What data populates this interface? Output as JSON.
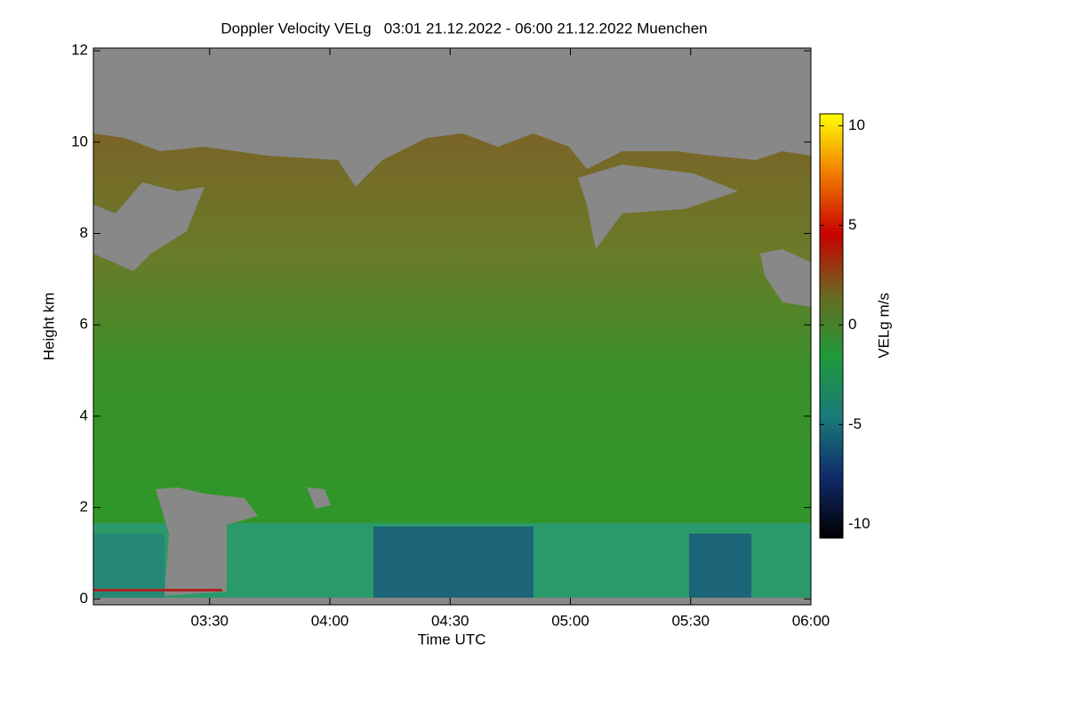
{
  "chart_data": {
    "type": "heatmap",
    "title": "Doppler Velocity VELg   03:01 21.12.2022 - 06:00 21.12.2022 Muenchen",
    "x_label": "Time UTC",
    "y_label": "Height km",
    "colorbar_label": "VELg m/s",
    "xlim": [
      181,
      360
    ],
    "xticks": [
      {
        "value": 210,
        "label": "03:30"
      },
      {
        "value": 240,
        "label": "04:00"
      },
      {
        "value": 270,
        "label": "04:30"
      },
      {
        "value": 300,
        "label": "05:00"
      },
      {
        "value": 330,
        "label": "05:30"
      },
      {
        "value": 360,
        "label": "06:00"
      }
    ],
    "ylim": [
      -0.13,
      12.06
    ],
    "yticks": [
      0,
      2,
      4,
      6,
      8,
      10,
      12
    ],
    "clim": [
      -10.7,
      10.6
    ],
    "cticks": [
      -10,
      -5,
      0,
      5,
      10
    ],
    "colormap": [
      "#000000",
      "#102a6a",
      "#1a7a7a",
      "#1f9a3a",
      "#6a6a20",
      "#c80000",
      "#f07a00",
      "#ffff00"
    ]
  }
}
